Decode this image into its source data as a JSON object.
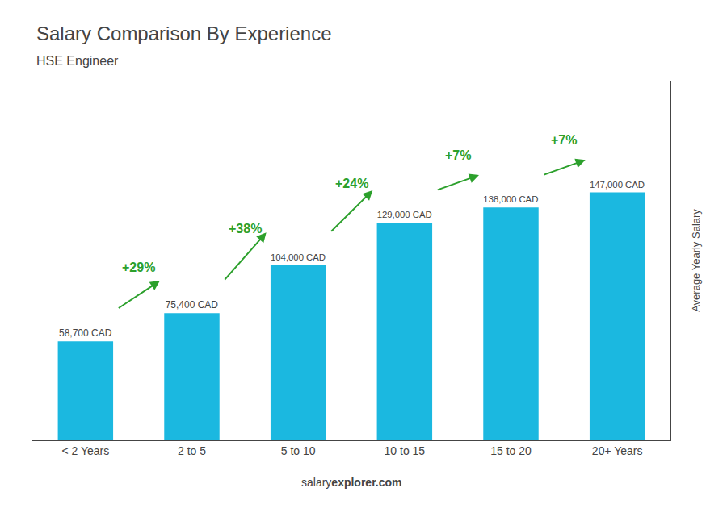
{
  "chart_data": {
    "type": "bar",
    "title": "Salary Comparison By Experience",
    "subtitle": "HSE Engineer",
    "ylabel": "Average Yearly Salary",
    "footer": [
      "salary",
      "explorer.com"
    ],
    "categories": [
      "< 2 Years",
      "2 to 5",
      "5 to 10",
      "10 to 15",
      "15 to 20",
      "20+ Years"
    ],
    "values": [
      58700,
      75400,
      104000,
      129000,
      138000,
      147000
    ],
    "value_labels": [
      "58,700 CAD",
      "75,400 CAD",
      "104,000 CAD",
      "129,000 CAD",
      "138,000 CAD",
      "147,000 CAD"
    ],
    "data_labels": true,
    "annotations": [
      "+29%",
      "+38%",
      "+24%",
      "+7%",
      "+7%"
    ],
    "color": "#1BB8E0",
    "ylim": [
      0,
      213150
    ],
    "tick_labels": "x",
    "grid": false
  }
}
